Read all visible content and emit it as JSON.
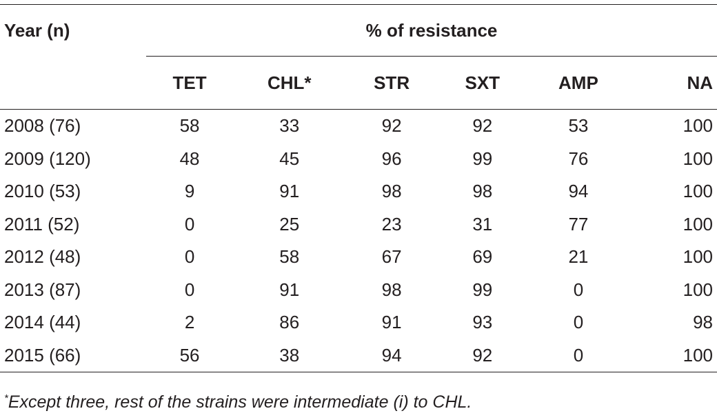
{
  "header": {
    "year_label": "Year (n)",
    "group_label": "% of resistance",
    "columns": [
      "TET",
      "CHL*",
      "STR",
      "SXT",
      "AMP",
      "NA"
    ]
  },
  "rows": [
    {
      "year": "2008 (76)",
      "values": [
        "58",
        "33",
        "92",
        "92",
        "53",
        "100"
      ]
    },
    {
      "year": "2009 (120)",
      "values": [
        "48",
        "45",
        "96",
        "99",
        "76",
        "100"
      ]
    },
    {
      "year": "2010 (53)",
      "values": [
        "9",
        "91",
        "98",
        "98",
        "94",
        "100"
      ]
    },
    {
      "year": "2011 (52)",
      "values": [
        "0",
        "25",
        "23",
        "31",
        "77",
        "100"
      ]
    },
    {
      "year": "2012 (48)",
      "values": [
        "0",
        "58",
        "67",
        "69",
        "21",
        "100"
      ]
    },
    {
      "year": "2013 (87)",
      "values": [
        "0",
        "91",
        "98",
        "99",
        "0",
        "100"
      ]
    },
    {
      "year": "2014 (44)",
      "values": [
        "2",
        "86",
        "91",
        "93",
        "0",
        "98"
      ]
    },
    {
      "year": "2015 (66)",
      "values": [
        "56",
        "38",
        "94",
        "92",
        "0",
        "100"
      ]
    }
  ],
  "footnote": {
    "marker": "*",
    "text": "Except three, rest of the strains were intermediate (i) to CHL."
  }
}
